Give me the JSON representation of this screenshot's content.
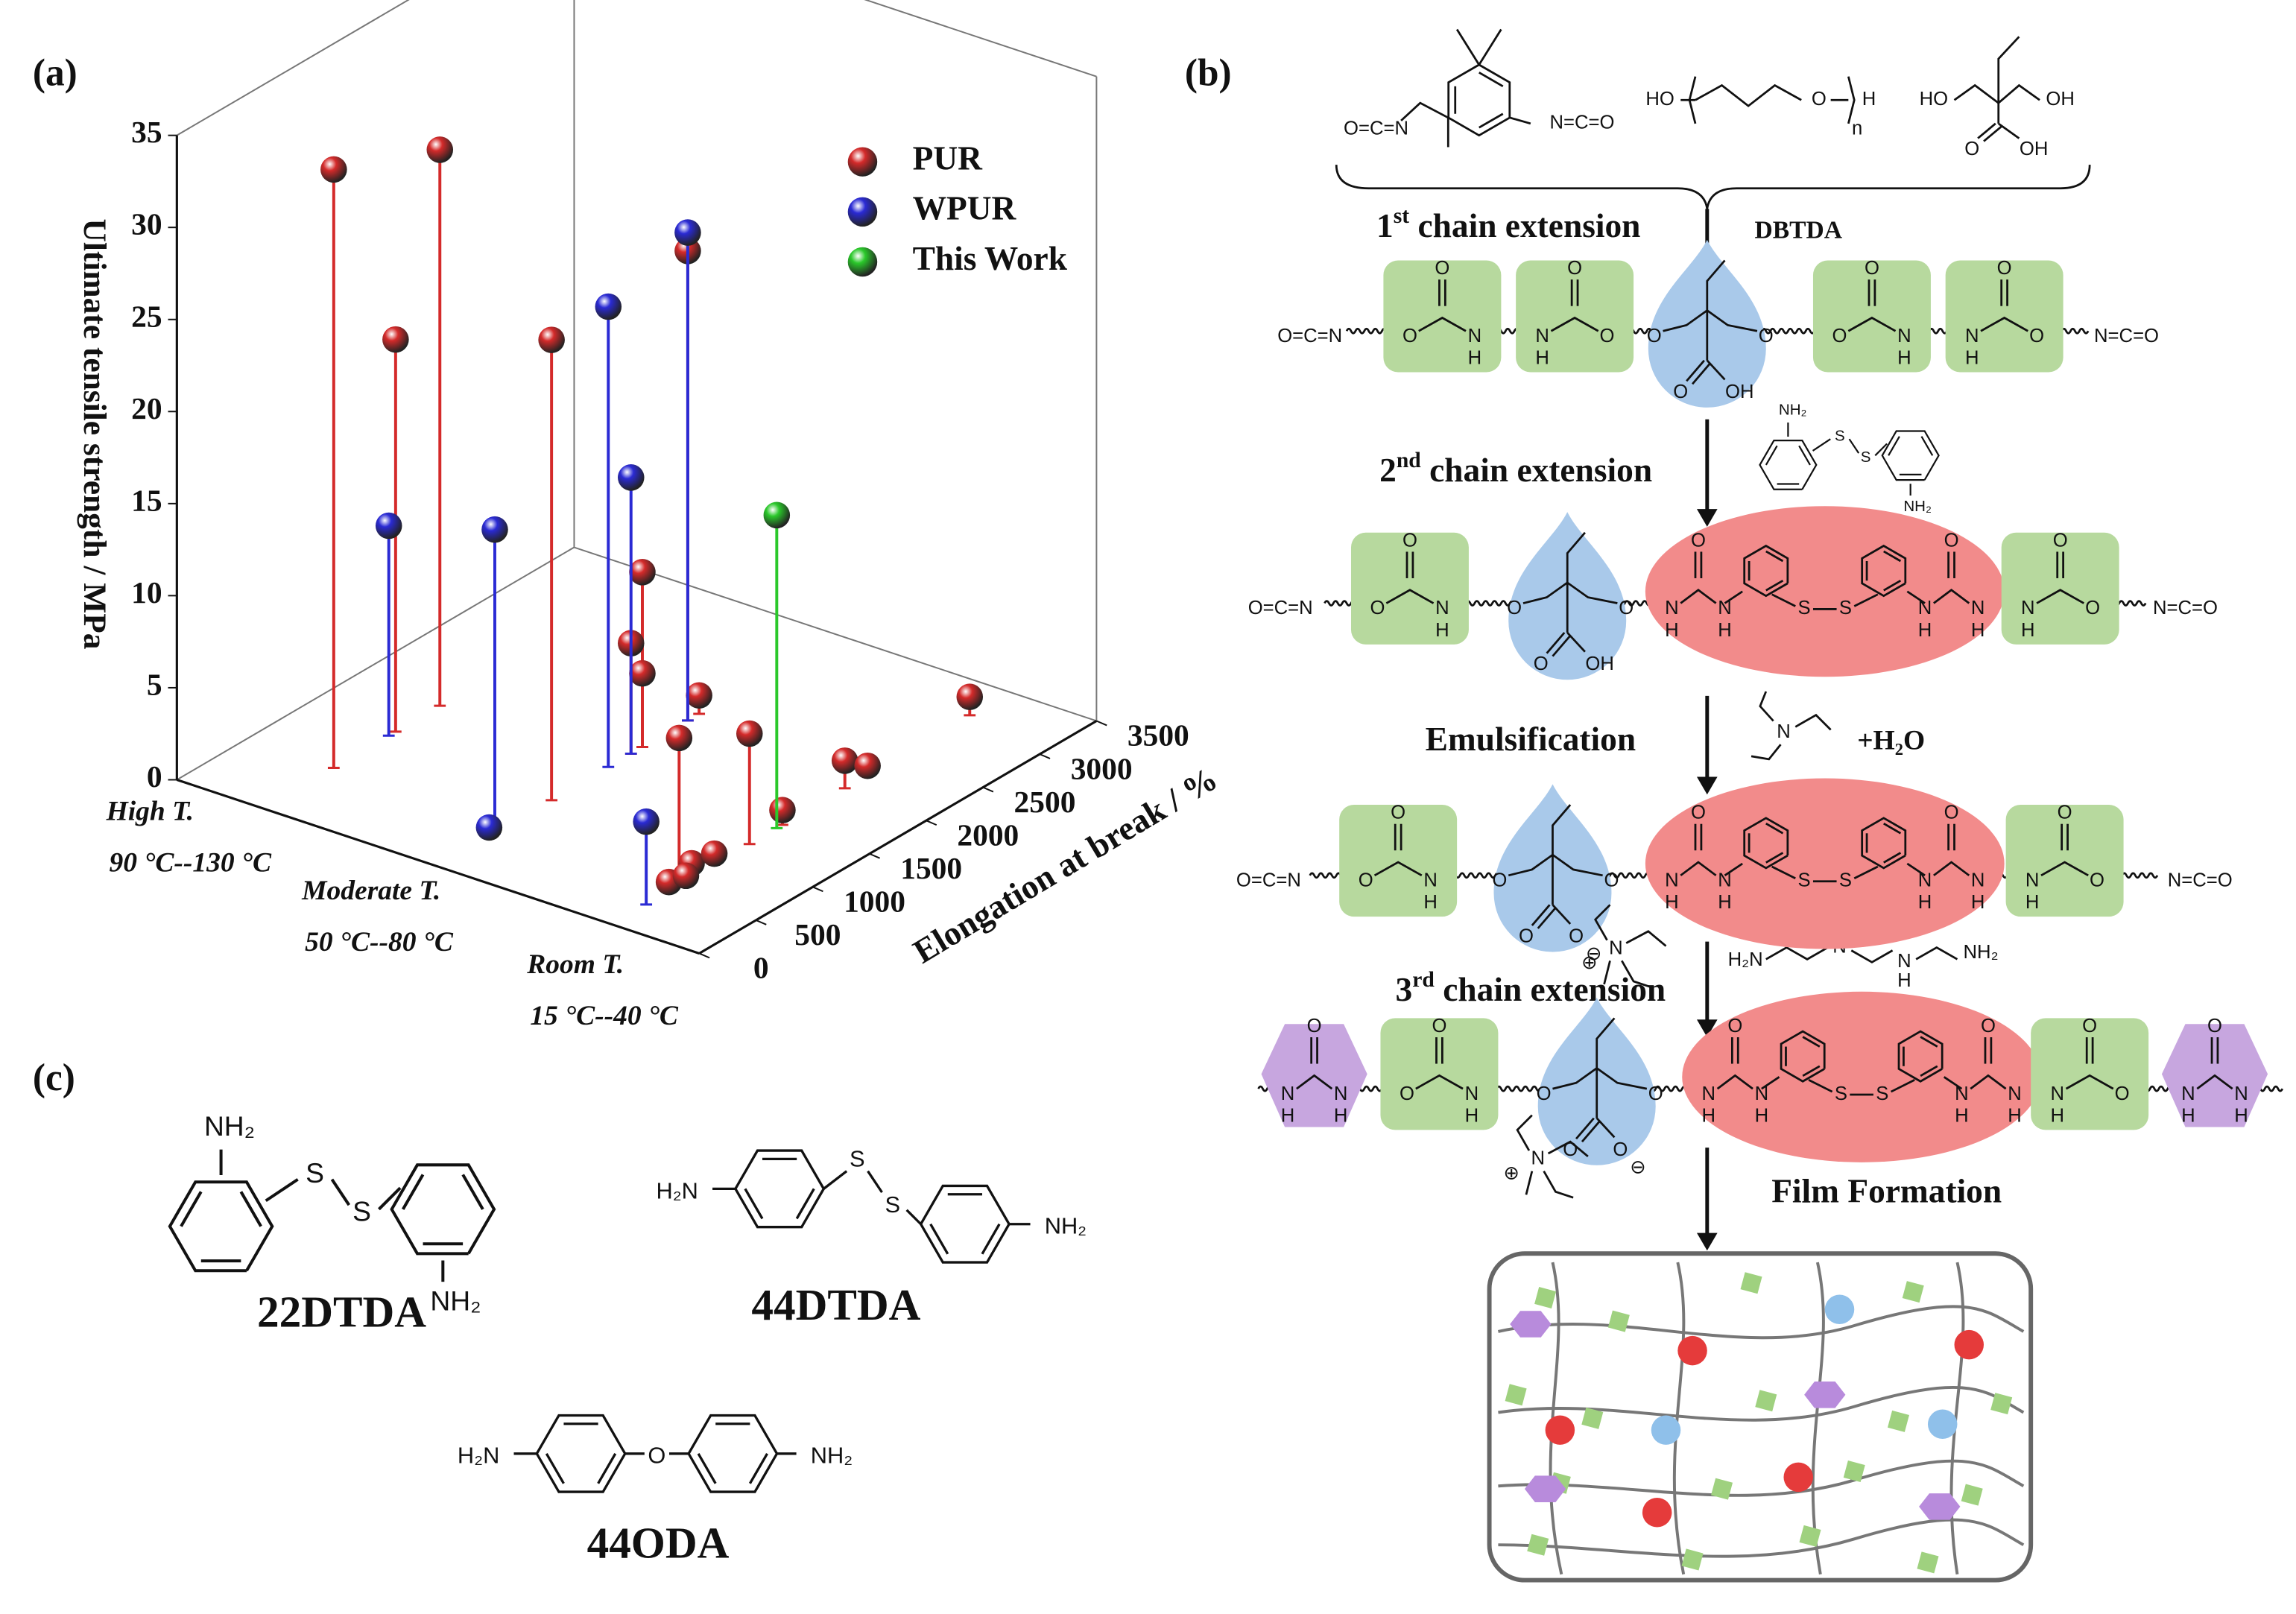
{
  "panel_labels": [
    "(a)",
    "(b)",
    "(c)"
  ],
  "chart_data": {
    "type": "scatter3d",
    "zlabel": "Ultimate tensile strength / MPa",
    "ylabel": "Elongation at break / %",
    "categories": [
      "High T.",
      "Moderate T.",
      "Room T."
    ],
    "category_ranges": [
      "90 °C--130 °C",
      "50 °C--80 °C",
      "15 °C--40 °C"
    ],
    "ylim": [
      0,
      3500
    ],
    "yticks": [
      0,
      500,
      1000,
      1500,
      2000,
      2500,
      3000,
      3500
    ],
    "zlim": [
      0,
      35
    ],
    "zticks": [
      0,
      5,
      10,
      15,
      20,
      25,
      30,
      35
    ],
    "legend": "upper right",
    "series": [
      {
        "name": "PUR",
        "color": "#d42a2a",
        "x": [
          "High T.",
          "High T.",
          "High T.",
          "Moderate T.",
          "Moderate T.",
          "Moderate T.",
          "Moderate T.",
          "Moderate T.",
          "Moderate T.",
          "Room T.",
          "Room T.",
          "Room T.",
          "Room T.",
          "Room T.",
          "Room T.",
          "Room T.",
          "Room T.",
          "Room T.",
          "Room T."
        ],
        "y": [
          615,
          1160,
          1550,
          1000,
          1800,
          1700,
          1800,
          2300,
          2200,
          590,
          1210,
          3150,
          2050,
          2250,
          1500,
          500,
          700,
          900,
          650
        ],
        "z": [
          32.5,
          21.3,
          30.2,
          25,
          9.5,
          6,
          4,
          1,
          25.5,
          8,
          6,
          1,
          1.5,
          0.5,
          0.8,
          0.5,
          0.8,
          0.6,
          0.3
        ]
      },
      {
        "name": "WPUR",
        "color": "#2a2ad4",
        "x": [
          "High T.",
          "Moderate T.",
          "Moderate T.",
          "Moderate T.",
          "Moderate T.",
          "Moderate T.",
          "Room T."
        ],
        "y": [
          1100,
          500,
          1500,
          1700,
          2200,
          450,
          300
        ],
        "z": [
          11.4,
          16.5,
          25,
          15,
          26.5,
          0.5,
          4.5
        ]
      },
      {
        "name": "This Work",
        "color": "#2ac82a",
        "x": [
          "Room T."
        ],
        "y": [
          1450
        ],
        "z": [
          17
        ]
      }
    ]
  },
  "scheme": {
    "steps": [
      {
        "num": "1",
        "sup": "st",
        "text": " chain extension"
      },
      {
        "num": "2",
        "sup": "nd",
        "text": " chain extension"
      },
      {
        "text": "Emulsification"
      },
      {
        "num": "3",
        "sup": "rd",
        "text": " chain extension"
      },
      {
        "text": "Film Formation"
      }
    ],
    "catalyst": "DBTDA",
    "water": "+H₂O",
    "atoms": {
      "O": "O",
      "H": "H",
      "N": "N",
      "S": "S",
      "HO": "HO",
      "OH": "OH",
      "n": "n",
      "NCO_left": "O=C=N",
      "NCO_right": "N=C=O",
      "NH2": "NH₂",
      "H2N": "H₂N",
      "minus": "⊖",
      "plus": "⊕"
    }
  },
  "structures": [
    {
      "name": "22DTDA"
    },
    {
      "name": "44DTDA"
    },
    {
      "name": "44ODA"
    }
  ]
}
